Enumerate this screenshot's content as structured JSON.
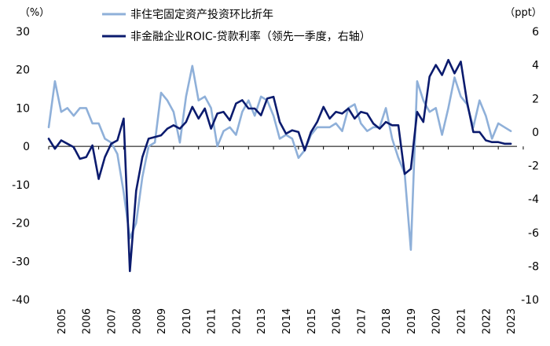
{
  "chart_data": {
    "type": "line",
    "left_unit": "（%）",
    "right_unit": "（ppt）",
    "left_axis": {
      "min": -40,
      "max": 30,
      "step": 10
    },
    "right_axis": {
      "min": -10,
      "max": 6,
      "step": 2
    },
    "x_start": 2005,
    "x_end": 2023.75,
    "year_labels": [
      "2005",
      "2006",
      "2007",
      "2008",
      "2009",
      "2010",
      "2011",
      "2012",
      "2013",
      "2014",
      "2015",
      "2016",
      "2017",
      "2018",
      "2019",
      "2020",
      "2021",
      "2022",
      "2023"
    ],
    "series": [
      {
        "name": "非住宅固定资产投资环比折年",
        "axis": "left",
        "color": "#8fb0d9",
        "x": [
          2005.0,
          2005.25,
          2005.5,
          2005.75,
          2006.0,
          2006.25,
          2006.5,
          2006.75,
          2007.0,
          2007.25,
          2007.5,
          2007.75,
          2008.0,
          2008.25,
          2008.5,
          2008.75,
          2009.0,
          2009.25,
          2009.5,
          2009.75,
          2010.0,
          2010.25,
          2010.5,
          2010.75,
          2011.0,
          2011.25,
          2011.5,
          2011.75,
          2012.0,
          2012.25,
          2012.5,
          2012.75,
          2013.0,
          2013.25,
          2013.5,
          2013.75,
          2014.0,
          2014.25,
          2014.5,
          2014.75,
          2015.0,
          2015.25,
          2015.5,
          2015.75,
          2016.0,
          2016.25,
          2016.5,
          2016.75,
          2017.0,
          2017.25,
          2017.5,
          2017.75,
          2018.0,
          2018.25,
          2018.5,
          2018.75,
          2019.0,
          2019.25,
          2019.5,
          2019.75,
          2020.0,
          2020.25,
          2020.5,
          2020.75,
          2021.0,
          2021.25,
          2021.5,
          2021.75,
          2022.0,
          2022.25,
          2022.5,
          2022.75,
          2023.0,
          2023.25,
          2023.5
        ],
        "values": [
          5,
          17,
          9,
          10,
          8,
          10,
          10,
          6,
          6,
          2,
          1,
          -2,
          -12,
          -24,
          -20,
          -8,
          0,
          1,
          14,
          12,
          9,
          1,
          13,
          21,
          12,
          13,
          10,
          0,
          4,
          5,
          3,
          9,
          12,
          8,
          13,
          12,
          8,
          2,
          3,
          2,
          -3,
          -1,
          3,
          5,
          5,
          5,
          6,
          4,
          10,
          11,
          6,
          4,
          5,
          5,
          10,
          2,
          -3,
          -7,
          -27,
          17,
          12,
          9,
          10,
          3,
          10,
          18,
          13,
          11,
          5,
          12,
          8,
          2,
          6,
          5,
          4
        ]
      },
      {
        "name": "非金融企业ROIC-贷款利率（领先一季度，右轴）",
        "axis": "right",
        "color": "#0b1b6e",
        "x": [
          2005.0,
          2005.25,
          2005.5,
          2005.75,
          2006.0,
          2006.25,
          2006.5,
          2006.75,
          2007.0,
          2007.25,
          2007.5,
          2007.75,
          2008.0,
          2008.25,
          2008.5,
          2008.75,
          2009.0,
          2009.25,
          2009.5,
          2009.75,
          2010.0,
          2010.25,
          2010.5,
          2010.75,
          2011.0,
          2011.25,
          2011.5,
          2011.75,
          2012.0,
          2012.25,
          2012.5,
          2012.75,
          2013.0,
          2013.25,
          2013.5,
          2013.75,
          2014.0,
          2014.25,
          2014.5,
          2014.75,
          2015.0,
          2015.25,
          2015.5,
          2015.75,
          2016.0,
          2016.25,
          2016.5,
          2016.75,
          2017.0,
          2017.25,
          2017.5,
          2017.75,
          2018.0,
          2018.25,
          2018.5,
          2018.75,
          2019.0,
          2019.25,
          2019.5,
          2019.75,
          2020.0,
          2020.25,
          2020.5,
          2020.75,
          2021.0,
          2021.25,
          2021.5,
          2021.75,
          2022.0,
          2022.25,
          2022.5,
          2022.75,
          2023.0,
          2023.25,
          2023.5
        ],
        "values": [
          -0.4,
          -1.0,
          -0.5,
          -0.7,
          -0.9,
          -1.6,
          -1.5,
          -0.8,
          -2.8,
          -1.5,
          -0.7,
          -0.5,
          0.8,
          -8.3,
          -3.5,
          -1.5,
          -0.4,
          -0.3,
          -0.2,
          0.2,
          0.4,
          0.2,
          0.6,
          1.5,
          0.8,
          1.4,
          0.2,
          1.1,
          1.2,
          0.7,
          1.7,
          1.9,
          1.4,
          1.4,
          1.0,
          2.0,
          2.1,
          0.6,
          -0.1,
          0.1,
          0.0,
          -1.1,
          0.0,
          0.6,
          1.5,
          0.8,
          1.2,
          1.1,
          1.4,
          0.8,
          1.2,
          1.1,
          0.5,
          0.2,
          0.6,
          0.4,
          0.4,
          -2.5,
          -2.2,
          1.2,
          0.6,
          3.3,
          4.0,
          3.4,
          4.3,
          3.5,
          4.2,
          1.8,
          0.0,
          0.0,
          -0.5,
          -0.6,
          -0.6,
          -0.7,
          -0.7
        ]
      }
    ]
  }
}
